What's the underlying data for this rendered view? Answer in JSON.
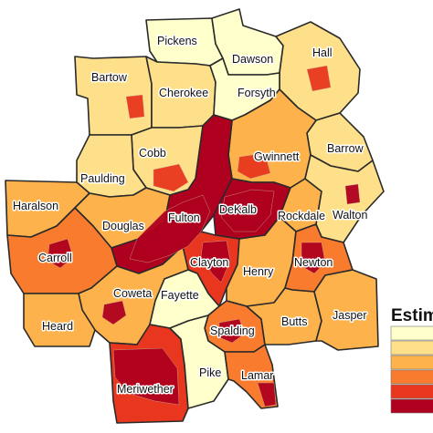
{
  "colors": {
    "class1": "#ffffcc",
    "class2": "#ffe08a",
    "class3": "#fdb24c",
    "class4": "#f97b2d",
    "class5": "#e8371e",
    "class6": "#b0001f",
    "border": "#2a2a2a"
  },
  "legend": {
    "title": "Estim",
    "classes": [
      "class1",
      "class2",
      "class3",
      "class4",
      "class5",
      "class6"
    ]
  },
  "counties": [
    {
      "id": "pickens",
      "label": "Pickens",
      "cls": "class1"
    },
    {
      "id": "dawson",
      "label": "Dawson",
      "cls": "class1"
    },
    {
      "id": "hall",
      "label": "Hall",
      "cls": "class2"
    },
    {
      "id": "bartow",
      "label": "Bartow",
      "cls": "class2"
    },
    {
      "id": "cherokee",
      "label": "Cherokee",
      "cls": "class2"
    },
    {
      "id": "forsyth",
      "label": "Forsyth",
      "cls": "class1"
    },
    {
      "id": "barrow",
      "label": "Barrow",
      "cls": "class2"
    },
    {
      "id": "cobb",
      "label": "Cobb",
      "cls": "class2"
    },
    {
      "id": "gwinnett",
      "label": "Gwinnett",
      "cls": "class3"
    },
    {
      "id": "paulding",
      "label": "Paulding",
      "cls": "class2"
    },
    {
      "id": "haralson",
      "label": "Haralson",
      "cls": "class3"
    },
    {
      "id": "douglas",
      "label": "Douglas",
      "cls": "class3"
    },
    {
      "id": "fulton",
      "label": "Fulton",
      "cls": "class6"
    },
    {
      "id": "dekalb",
      "label": "DeKalb",
      "cls": "class6"
    },
    {
      "id": "rockdale",
      "label": "Rockdale",
      "cls": "class3"
    },
    {
      "id": "walton",
      "label": "Walton",
      "cls": "class2"
    },
    {
      "id": "carroll",
      "label": "Carroll",
      "cls": "class4"
    },
    {
      "id": "clayton",
      "label": "Clayton",
      "cls": "class5"
    },
    {
      "id": "henry",
      "label": "Henry",
      "cls": "class3"
    },
    {
      "id": "newton",
      "label": "Newton",
      "cls": "class4"
    },
    {
      "id": "coweta",
      "label": "Coweta",
      "cls": "class3"
    },
    {
      "id": "fayette",
      "label": "Fayette",
      "cls": "class1"
    },
    {
      "id": "heard",
      "label": "Heard",
      "cls": "class3"
    },
    {
      "id": "spalding",
      "label": "Spalding",
      "cls": "class4"
    },
    {
      "id": "butts",
      "label": "Butts",
      "cls": "class3"
    },
    {
      "id": "jasper",
      "label": "Jasper",
      "cls": "class3"
    },
    {
      "id": "meriwether",
      "label": "Meriwether",
      "cls": "class5"
    },
    {
      "id": "pike",
      "label": "Pike",
      "cls": "class1"
    },
    {
      "id": "lamar",
      "label": "Lamar",
      "cls": "class4"
    }
  ],
  "hotspots": [
    {
      "county": "fulton",
      "cls": "class6"
    },
    {
      "county": "dekalb",
      "cls": "class6"
    },
    {
      "county": "carroll",
      "cls": "class6"
    },
    {
      "county": "clayton",
      "cls": "class6"
    },
    {
      "county": "newton",
      "cls": "class6"
    },
    {
      "county": "spalding",
      "cls": "class6"
    },
    {
      "county": "meriwether",
      "cls": "class6"
    },
    {
      "county": "coweta",
      "cls": "class6"
    },
    {
      "county": "walton",
      "cls": "class6"
    },
    {
      "county": "bartow",
      "cls": "class5"
    },
    {
      "county": "cobb",
      "cls": "class5"
    },
    {
      "county": "gwinnett",
      "cls": "class5"
    },
    {
      "county": "hall",
      "cls": "class5"
    },
    {
      "county": "lamar",
      "cls": "class6"
    }
  ]
}
